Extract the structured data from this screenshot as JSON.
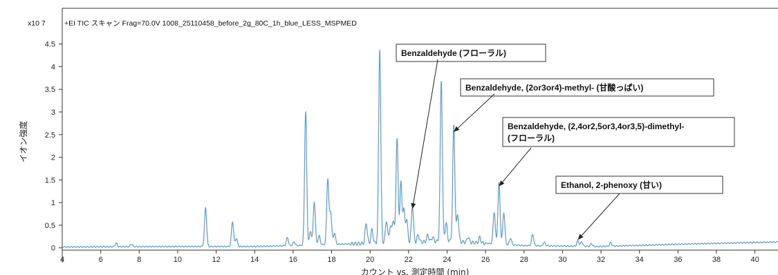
{
  "chart_data": {
    "type": "line",
    "title": "+EI TIC スキャン Frag=70.0V 1008_25110458_before_2g_80C_1h_blue_LESS_MSPMED",
    "y_exponent": "x10 7",
    "xlabel": "カウント vs. 測定時間 (min)",
    "ylabel": "イオン強度",
    "xlim": [
      4,
      41.2
    ],
    "ylim": [
      -0.05,
      4.8
    ],
    "x_ticks": [
      "4",
      "6",
      "8",
      "10",
      "12",
      "14",
      "16",
      "18",
      "20",
      "22",
      "24",
      "26",
      "28",
      "30",
      "32",
      "34",
      "36",
      "38",
      "40"
    ],
    "y_ticks": [
      "0",
      "0.5",
      "1",
      "1.5",
      "2",
      "2.5",
      "3",
      "3.5",
      "4",
      "4.5"
    ],
    "grid": false,
    "color": "#5b9bd5",
    "baseline": [
      [
        4,
        0.02
      ],
      [
        10,
        0.03
      ],
      [
        14,
        0.03
      ],
      [
        16,
        0.05
      ],
      [
        20,
        0.1
      ],
      [
        22,
        0.12
      ],
      [
        24,
        0.15
      ],
      [
        26,
        0.1
      ],
      [
        28,
        0.05
      ],
      [
        32,
        0.03
      ],
      [
        36,
        0.08
      ],
      [
        38,
        0.1
      ],
      [
        41.2,
        0.13
      ]
    ],
    "peaks": [
      {
        "t": 6.8,
        "h": 0.08
      },
      {
        "t": 7.6,
        "h": 0.06
      },
      {
        "t": 11.45,
        "h": 0.85
      },
      {
        "t": 12.85,
        "h": 0.55
      },
      {
        "t": 13.05,
        "h": 0.18
      },
      {
        "t": 15.7,
        "h": 0.18
      },
      {
        "t": 16.05,
        "h": 0.08
      },
      {
        "t": 16.65,
        "h": 2.95
      },
      {
        "t": 16.9,
        "h": 0.3
      },
      {
        "t": 17.1,
        "h": 0.95
      },
      {
        "t": 17.35,
        "h": 0.2
      },
      {
        "t": 17.8,
        "h": 1.45
      },
      {
        "t": 17.95,
        "h": 0.7
      },
      {
        "t": 18.15,
        "h": 0.25
      },
      {
        "t": 19.8,
        "h": 0.45
      },
      {
        "t": 20.1,
        "h": 0.3
      },
      {
        "t": 20.5,
        "h": 4.3
      },
      {
        "t": 20.85,
        "h": 0.5
      },
      {
        "t": 21.05,
        "h": 0.35
      },
      {
        "t": 21.2,
        "h": 0.5
      },
      {
        "t": 21.4,
        "h": 2.3
      },
      {
        "t": 21.6,
        "h": 1.3
      },
      {
        "t": 21.75,
        "h": 0.7
      },
      {
        "t": 21.9,
        "h": 0.5
      },
      {
        "t": 22.2,
        "h": 0.8
      },
      {
        "t": 22.5,
        "h": 0.15
      },
      {
        "t": 23.0,
        "h": 0.15
      },
      {
        "t": 23.25,
        "h": 0.1
      },
      {
        "t": 23.7,
        "h": 3.55
      },
      {
        "t": 23.95,
        "h": 0.4
      },
      {
        "t": 24.35,
        "h": 2.55
      },
      {
        "t": 24.55,
        "h": 0.6
      },
      {
        "t": 25.1,
        "h": 0.12
      },
      {
        "t": 25.7,
        "h": 0.12
      },
      {
        "t": 26.45,
        "h": 0.7
      },
      {
        "t": 26.7,
        "h": 1.35
      },
      {
        "t": 26.95,
        "h": 0.7
      },
      {
        "t": 27.3,
        "h": 0.15
      },
      {
        "t": 28.45,
        "h": 0.25
      },
      {
        "t": 29.05,
        "h": 0.08
      },
      {
        "t": 30.8,
        "h": 0.12
      },
      {
        "t": 31.0,
        "h": 0.1
      },
      {
        "t": 31.5,
        "h": 0.06
      },
      {
        "t": 32.5,
        "h": 0.08
      }
    ],
    "annotations": [
      {
        "lines": [
          "Benzaldehyde (フローラル)"
        ],
        "x": 22.2,
        "y": 0.8
      },
      {
        "lines": [
          "Benzaldehyde, (2or3or4)-methyl- (甘酸っぱい)"
        ],
        "x": 24.35,
        "y": 2.5
      },
      {
        "lines": [
          "Benzaldehyde, (2,4or2,5or3,4or3,5)-dimethyl-",
          "(フローラル)"
        ],
        "x": 26.7,
        "y": 1.3
      },
      {
        "lines": [
          "Ethanol, 2-phenoxy (甘い)"
        ],
        "x": 30.8,
        "y": 0.12
      }
    ]
  }
}
